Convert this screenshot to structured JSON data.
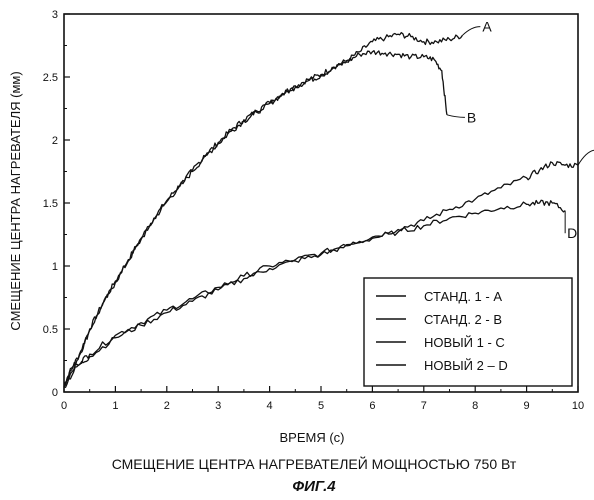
{
  "chart_data": {
    "type": "line",
    "xlabel": "ВРЕМЯ (с)",
    "ylabel": "СМЕЩЕНИЕ ЦЕНТРА НАГРЕВАТЕЛЯ (мм)",
    "xlim": [
      0,
      10
    ],
    "ylim": [
      0,
      3
    ],
    "xticks": [
      0,
      1,
      2,
      3,
      4,
      5,
      6,
      7,
      8,
      9,
      10
    ],
    "yticks": [
      0,
      0.5,
      1,
      1.5,
      2,
      2.5,
      3
    ],
    "grid": false,
    "legend_position": "bottom-right",
    "caption": "СМЕЩЕНИЕ ЦЕНТРА НАГРЕВАТЕЛЕЙ МОЩНОСТЬЮ 750 Вт",
    "figure_label": "ФИГ.4",
    "series": [
      {
        "name": "СТАНД. 1 - А",
        "label": "A",
        "x": [
          0,
          0.1,
          0.3,
          0.5,
          0.75,
          1.0,
          1.25,
          1.5,
          1.75,
          2.0,
          2.25,
          2.5,
          2.75,
          3.0,
          3.25,
          3.5,
          3.75,
          4.0,
          4.25,
          4.5,
          4.75,
          5.0,
          5.25,
          5.5,
          5.75,
          6.0,
          6.25,
          6.5,
          6.75,
          7.0,
          7.25,
          7.5,
          7.75
        ],
        "y": [
          0.05,
          0.15,
          0.3,
          0.5,
          0.7,
          0.88,
          1.05,
          1.22,
          1.38,
          1.52,
          1.64,
          1.76,
          1.88,
          1.98,
          2.08,
          2.16,
          2.23,
          2.3,
          2.37,
          2.43,
          2.48,
          2.52,
          2.58,
          2.63,
          2.7,
          2.78,
          2.81,
          2.84,
          2.82,
          2.78,
          2.78,
          2.8,
          2.83
        ]
      },
      {
        "name": "СТАНД. 2 - В",
        "label": "B",
        "x": [
          0,
          0.1,
          0.3,
          0.5,
          0.75,
          1.0,
          1.25,
          1.5,
          1.75,
          2.0,
          2.25,
          2.5,
          2.75,
          3.0,
          3.25,
          3.5,
          3.75,
          4.0,
          4.25,
          4.5,
          4.75,
          5.0,
          5.25,
          5.5,
          5.75,
          6.0,
          6.25,
          6.5,
          6.75,
          7.0,
          7.2,
          7.35,
          7.45
        ],
        "y": [
          0.04,
          0.14,
          0.29,
          0.49,
          0.69,
          0.87,
          1.04,
          1.21,
          1.37,
          1.51,
          1.63,
          1.75,
          1.87,
          1.97,
          2.07,
          2.15,
          2.22,
          2.29,
          2.36,
          2.42,
          2.47,
          2.51,
          2.57,
          2.62,
          2.68,
          2.7,
          2.69,
          2.68,
          2.66,
          2.66,
          2.64,
          2.55,
          2.2
        ]
      },
      {
        "name": "НОВЫЙ 1 - С",
        "label": "C",
        "x": [
          0,
          0.25,
          0.5,
          1.0,
          1.5,
          2.0,
          2.5,
          3.0,
          3.5,
          4.0,
          4.5,
          5.0,
          5.5,
          6.0,
          6.5,
          7.0,
          7.5,
          8.0,
          8.5,
          9.0,
          9.25,
          9.5,
          9.75,
          10.0
        ],
        "y": [
          0.05,
          0.22,
          0.3,
          0.45,
          0.55,
          0.65,
          0.74,
          0.83,
          0.92,
          1.0,
          1.05,
          1.1,
          1.17,
          1.23,
          1.29,
          1.36,
          1.45,
          1.53,
          1.62,
          1.7,
          1.76,
          1.82,
          1.8,
          1.8
        ]
      },
      {
        "name": "НОВЫЙ 2 – D",
        "label": "D",
        "x": [
          0,
          0.25,
          0.5,
          1.0,
          1.5,
          2.0,
          2.5,
          3.0,
          3.5,
          4.0,
          4.5,
          5.0,
          5.5,
          6.0,
          6.5,
          7.0,
          7.5,
          8.0,
          8.5,
          9.0,
          9.25,
          9.5,
          9.75
        ],
        "y": [
          0.04,
          0.2,
          0.28,
          0.43,
          0.53,
          0.63,
          0.72,
          0.81,
          0.9,
          0.98,
          1.04,
          1.09,
          1.16,
          1.22,
          1.27,
          1.32,
          1.38,
          1.42,
          1.46,
          1.49,
          1.5,
          1.5,
          1.44
        ]
      }
    ]
  }
}
